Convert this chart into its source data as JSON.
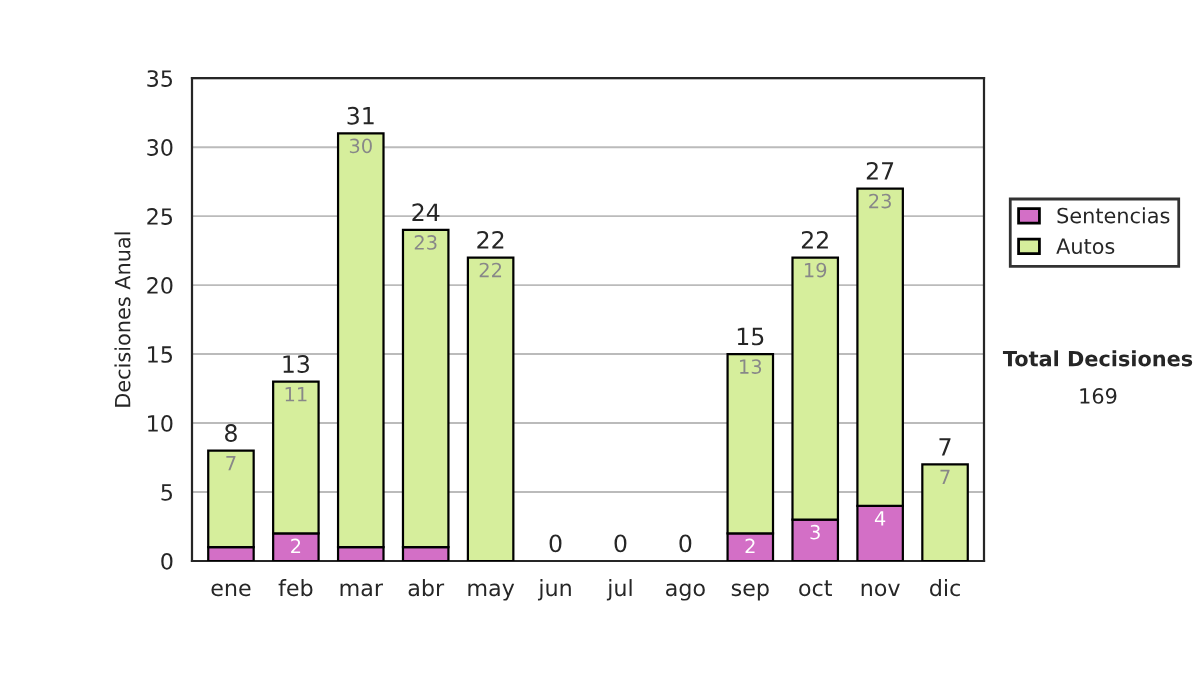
{
  "chart_data": {
    "type": "bar",
    "stacked": true,
    "ylabel": "Decisiones Anual",
    "categories": [
      "ene",
      "feb",
      "mar",
      "abr",
      "may",
      "jun",
      "jul",
      "ago",
      "sep",
      "oct",
      "nov",
      "dic"
    ],
    "series": [
      {
        "name": "Sentencias",
        "color": "#d36fc6",
        "values": [
          1,
          2,
          1,
          1,
          0,
          0,
          0,
          0,
          2,
          3,
          4,
          0
        ],
        "value_labels": [
          null,
          "2",
          null,
          null,
          null,
          null,
          null,
          null,
          "2",
          "3",
          "4",
          null
        ]
      },
      {
        "name": "Autos",
        "color": "#d6ee9c",
        "values": [
          7,
          11,
          30,
          23,
          22,
          0,
          0,
          0,
          13,
          19,
          23,
          7
        ],
        "value_labels": [
          "7",
          "11",
          "30",
          "23",
          "22",
          null,
          null,
          null,
          "13",
          "19",
          "23",
          "7"
        ]
      }
    ],
    "totals": [
      "8",
      "13",
      "31",
      "24",
      "22",
      "0",
      "0",
      "0",
      "15",
      "22",
      "27",
      "7"
    ],
    "ylim": [
      0,
      35
    ],
    "yticks": [
      0,
      5,
      10,
      15,
      20,
      25,
      30,
      35
    ],
    "grid": "y",
    "legend": "right",
    "annotations": [
      "Total Decisiones",
      "169"
    ]
  }
}
